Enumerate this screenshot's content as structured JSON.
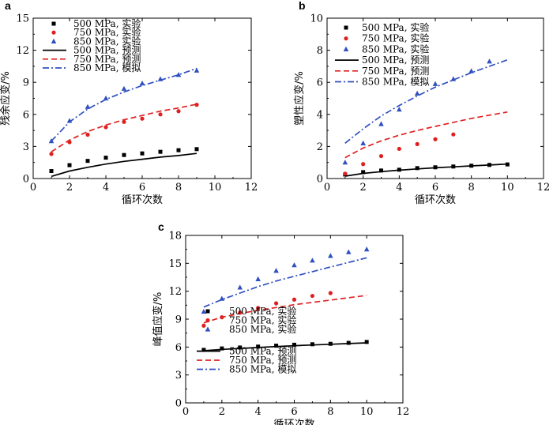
{
  "chart_data": [
    {
      "type": "line",
      "panel": "a",
      "xlabel": "循环次数",
      "ylabel": "残余应变/%",
      "xlim": [
        0,
        12
      ],
      "ylim": [
        0,
        15
      ],
      "xticks": [
        0,
        2,
        4,
        6,
        8,
        10,
        12
      ],
      "yticks": [
        0,
        3,
        6,
        9,
        12,
        15
      ],
      "legend_placement": "top-center",
      "series": [
        {
          "name": "500 MPa, 实验",
          "kind": "scatter",
          "marker": "square",
          "color": "#000000",
          "x": [
            1,
            2,
            3,
            4,
            5,
            6,
            7,
            8,
            9
          ],
          "y": [
            0.7,
            1.25,
            1.65,
            1.95,
            2.2,
            2.35,
            2.5,
            2.65,
            2.75
          ]
        },
        {
          "name": "750 MPa, 实验",
          "kind": "scatter",
          "marker": "circle",
          "color": "#e02020",
          "x": [
            1,
            2,
            3,
            4,
            5,
            6,
            7,
            8,
            9
          ],
          "y": [
            2.3,
            3.4,
            4.1,
            4.8,
            5.3,
            5.6,
            6.0,
            6.3,
            6.9
          ]
        },
        {
          "name": "850 MPa, 实验",
          "kind": "scatter",
          "marker": "triangle",
          "color": "#3050c0",
          "x": [
            1,
            2,
            3,
            4,
            5,
            6,
            7,
            8,
            9
          ],
          "y": [
            3.5,
            5.4,
            6.7,
            7.5,
            8.4,
            8.9,
            9.3,
            9.7,
            10.1
          ]
        },
        {
          "name": "500 MPa, 预测",
          "kind": "line",
          "dash": "solid",
          "color": "#000000",
          "x": [
            1,
            2,
            3,
            4,
            5,
            6,
            7,
            8,
            9
          ],
          "y": [
            0.2,
            0.7,
            1.05,
            1.35,
            1.6,
            1.8,
            2.0,
            2.15,
            2.35
          ]
        },
        {
          "name": "750 MPa, 预测",
          "kind": "line",
          "dash": "dashed",
          "color": "#e02020",
          "x": [
            1,
            2,
            3,
            4,
            5,
            6,
            7,
            8,
            9
          ],
          "y": [
            2.5,
            3.6,
            4.4,
            5.0,
            5.5,
            5.9,
            6.3,
            6.6,
            6.95
          ]
        },
        {
          "name": "850 MPa, 模拟",
          "kind": "line",
          "dash": "dashdot",
          "color": "#3050c0",
          "x": [
            1,
            2,
            3,
            4,
            5,
            6,
            7,
            8,
            9
          ],
          "y": [
            3.5,
            5.3,
            6.5,
            7.4,
            8.1,
            8.7,
            9.2,
            9.7,
            10.3
          ]
        }
      ]
    },
    {
      "type": "line",
      "panel": "b",
      "xlabel": "循环次数",
      "ylabel": "塑性应变/%",
      "xlim": [
        0,
        12
      ],
      "ylim": [
        0,
        10
      ],
      "xticks": [
        0,
        2,
        4,
        6,
        8,
        10,
        12
      ],
      "yticks": [
        0,
        2,
        4,
        6,
        8,
        10
      ],
      "legend_placement": "top-center",
      "series": [
        {
          "name": "500 MPa, 实验",
          "kind": "scatter",
          "marker": "square",
          "color": "#000000",
          "x": [
            1,
            2,
            3,
            4,
            5,
            6,
            7,
            8,
            9,
            10
          ],
          "y": [
            0.25,
            0.4,
            0.5,
            0.55,
            0.65,
            0.7,
            0.75,
            0.8,
            0.85,
            0.88
          ]
        },
        {
          "name": "750 MPa, 实验",
          "kind": "scatter",
          "marker": "circle",
          "color": "#e02020",
          "x": [
            1,
            2,
            3,
            4,
            5,
            6,
            7
          ],
          "y": [
            0.3,
            0.9,
            1.4,
            1.85,
            2.15,
            2.45,
            2.75
          ]
        },
        {
          "name": "850 MPa, 实验",
          "kind": "scatter",
          "marker": "triangle",
          "color": "#3050c0",
          "x": [
            1,
            2,
            3,
            4,
            5,
            6,
            7,
            8,
            9
          ],
          "y": [
            1.0,
            2.2,
            3.4,
            4.3,
            5.3,
            5.9,
            6.2,
            6.7,
            7.3
          ]
        },
        {
          "name": "500 MPa, 预测",
          "kind": "line",
          "dash": "solid",
          "color": "#000000",
          "x": [
            1,
            2,
            3,
            4,
            5,
            6,
            7,
            8,
            9,
            10
          ],
          "y": [
            0.15,
            0.32,
            0.43,
            0.52,
            0.6,
            0.67,
            0.73,
            0.79,
            0.84,
            0.9
          ]
        },
        {
          "name": "750 MPa, 预测",
          "kind": "line",
          "dash": "dashed",
          "color": "#e02020",
          "x": [
            1,
            2,
            3,
            4,
            5,
            6,
            7,
            8,
            9,
            10
          ],
          "y": [
            1.3,
            1.9,
            2.35,
            2.7,
            3.0,
            3.25,
            3.5,
            3.75,
            3.95,
            4.15
          ]
        },
        {
          "name": "850 MPa, 模拟",
          "kind": "line",
          "dash": "dashdot",
          "color": "#3050c0",
          "x": [
            1,
            2,
            3,
            4,
            5,
            6,
            7,
            8,
            9,
            10
          ],
          "y": [
            2.2,
            3.1,
            3.9,
            4.55,
            5.15,
            5.7,
            6.15,
            6.6,
            7.0,
            7.4
          ]
        }
      ]
    },
    {
      "type": "line",
      "panel": "c",
      "xlabel": "循环次数",
      "ylabel": "峰值应变/%",
      "xlim": [
        0,
        12
      ],
      "ylim": [
        0,
        18
      ],
      "xticks": [
        0,
        2,
        4,
        6,
        8,
        10,
        12
      ],
      "yticks": [
        0,
        3,
        6,
        9,
        12,
        15,
        18
      ],
      "legend_placement": "bottom-center",
      "series": [
        {
          "name": "500 MPa, 实验",
          "kind": "scatter",
          "marker": "square",
          "color": "#000000",
          "x": [
            1,
            2,
            3,
            4,
            5,
            6,
            7,
            8,
            9,
            10
          ],
          "y": [
            5.7,
            5.85,
            5.95,
            6.05,
            6.15,
            6.25,
            6.3,
            6.35,
            6.45,
            6.55
          ]
        },
        {
          "name": "750 MPa, 实验",
          "kind": "scatter",
          "marker": "circle",
          "color": "#e02020",
          "x": [
            1,
            2,
            3,
            4,
            5,
            6,
            7,
            8
          ],
          "y": [
            8.3,
            9.2,
            9.7,
            10.2,
            10.7,
            11.1,
            11.5,
            11.8
          ]
        },
        {
          "name": "850 MPa, 实验",
          "kind": "scatter",
          "marker": "triangle",
          "color": "#3050c0",
          "x": [
            1,
            2,
            3,
            4,
            5,
            6,
            7,
            8,
            9,
            10
          ],
          "y": [
            9.8,
            11.2,
            12.4,
            13.3,
            14.2,
            14.8,
            15.3,
            15.8,
            16.2,
            16.5
          ]
        },
        {
          "name": "500 MPa, 预测",
          "kind": "line",
          "dash": "solid",
          "color": "#000000",
          "x": [
            1,
            2,
            3,
            4,
            5,
            6,
            7,
            8,
            9,
            10
          ],
          "y": [
            5.6,
            5.75,
            5.85,
            5.95,
            6.05,
            6.15,
            6.22,
            6.3,
            6.38,
            6.45
          ]
        },
        {
          "name": "750 MPa, 预测",
          "kind": "line",
          "dash": "dashed",
          "color": "#e02020",
          "x": [
            1,
            2,
            3,
            4,
            5,
            6,
            7,
            8,
            9,
            10
          ],
          "y": [
            8.6,
            9.2,
            9.6,
            9.95,
            10.25,
            10.55,
            10.8,
            11.05,
            11.3,
            11.55
          ]
        },
        {
          "name": "850 MPa, 模拟",
          "kind": "line",
          "dash": "dashdot",
          "color": "#3050c0",
          "x": [
            1,
            2,
            3,
            4,
            5,
            6,
            7,
            8,
            9,
            10
          ],
          "y": [
            10.3,
            11.1,
            11.8,
            12.5,
            13.1,
            13.6,
            14.1,
            14.6,
            15.1,
            15.6
          ]
        }
      ]
    }
  ]
}
